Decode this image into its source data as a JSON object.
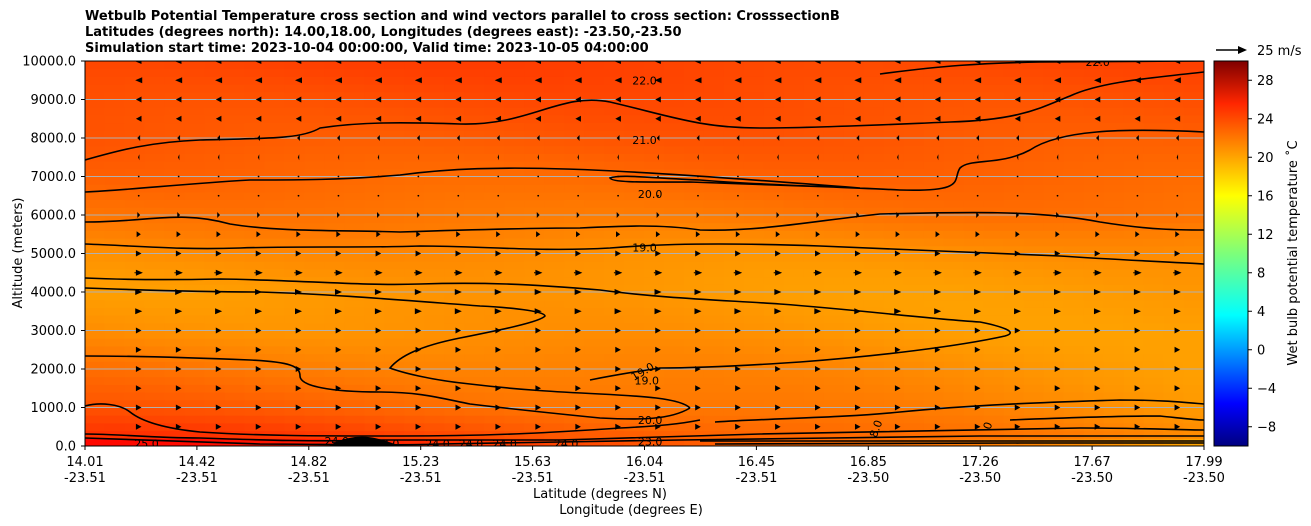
{
  "title_lines": [
    "Wetbulb Potential Temperature cross section and wind vectors parallel to cross section: CrosssectionB",
    "Latitudes (degrees north): 14.00,18.00, Longitudes (degrees east): -23.50,-23.50",
    "Simulation start time: 2023-10-04 00:00:00, Valid time: 2023-10-05 04:00:00"
  ],
  "chart_data": {
    "type": "heatmap",
    "subtype": "filled contour cross section with quiver vectors",
    "ylabel": "Altitude (meters)",
    "xlabel_primary": "Latitude (degrees N)",
    "xlabel_secondary": "Longitude (degrees E)",
    "ylim": [
      0,
      10000
    ],
    "y_ticks": [
      "0.0",
      "1000.0",
      "2000.0",
      "3000.0",
      "4000.0",
      "5000.0",
      "6000.0",
      "7000.0",
      "8000.0",
      "9000.0",
      "10000.0"
    ],
    "y_tick_values": [
      0,
      1000,
      2000,
      3000,
      4000,
      5000,
      6000,
      7000,
      8000,
      9000,
      10000
    ],
    "x_ticks_lat": [
      "14.01",
      "14.42",
      "14.82",
      "15.23",
      "15.63",
      "16.04",
      "16.45",
      "16.85",
      "17.26",
      "17.67",
      "17.99"
    ],
    "x_ticks_lon": [
      "-23.51",
      "-23.51",
      "-23.51",
      "-23.51",
      "-23.51",
      "-23.51",
      "-23.51",
      "-23.50",
      "-23.50",
      "-23.50",
      "-23.50"
    ],
    "x_tick_fractions": [
      0,
      0.1,
      0.2,
      0.3,
      0.4,
      0.5,
      0.6,
      0.7,
      0.8,
      0.9,
      1.0
    ],
    "grid": "horizontal",
    "colorbar": {
      "label": "Wet bulb potential temperature ˚C",
      "range": [
        -10,
        30
      ],
      "ticks": [
        "−8",
        "−4",
        "0",
        "4",
        "8",
        "12",
        "16",
        "20",
        "24",
        "28"
      ],
      "tick_values": [
        -8,
        -4,
        0,
        4,
        8,
        12,
        16,
        20,
        24,
        28
      ],
      "colormap": "jet"
    },
    "quiver_key": {
      "label": "25 m/s",
      "value": 25
    },
    "contour_labels": [
      {
        "text": "22.0",
        "x": 0.5,
        "alt": 9500
      },
      {
        "text": "22.0",
        "x": 0.905,
        "alt": 9970
      },
      {
        "text": "21.0",
        "x": 0.5,
        "alt": 7950
      },
      {
        "text": "20.0",
        "x": 0.505,
        "alt": 6550
      },
      {
        "text": "19.0",
        "x": 0.5,
        "alt": 5150
      },
      {
        "text": "19.0",
        "x": 0.5,
        "alt": 1950,
        "rotate": -30
      },
      {
        "text": "19.0",
        "x": 0.502,
        "alt": 1700
      },
      {
        "text": "20.0",
        "x": 0.505,
        "alt": 680
      },
      {
        "text": "23.0",
        "x": 0.505,
        "alt": 120
      },
      {
        "text": "25.0",
        "x": 0.055,
        "alt": 60
      },
      {
        "text": "24.0",
        "x": 0.225,
        "alt": 130
      },
      {
        "text": "23.0",
        "x": 0.24,
        "alt": 80
      },
      {
        "text": "22.0",
        "x": 0.27,
        "alt": 60
      },
      {
        "text": "24.0",
        "x": 0.315,
        "alt": 60
      },
      {
        "text": "24.0",
        "x": 0.345,
        "alt": 60
      },
      {
        "text": "24.0",
        "x": 0.375,
        "alt": 60
      },
      {
        "text": "24.0",
        "x": 0.43,
        "alt": 60
      },
      {
        "text": "8.0",
        "x": 0.71,
        "alt": 520,
        "rotate": -70
      },
      {
        "text": "0",
        "x": 0.81,
        "alt": 600,
        "rotate": -70
      }
    ],
    "temperature_profile": {
      "altitudes": [
        0,
        300,
        1000,
        2000,
        3000,
        4000,
        4500,
        5000,
        5500,
        6000,
        7000,
        8000,
        9000,
        10000
      ],
      "wbpt_left": [
        25.5,
        23.0,
        21.5,
        20.5,
        19.5,
        19.0,
        19.2,
        19.5,
        20.0,
        20.3,
        21.0,
        21.6,
        22.0,
        22.5
      ],
      "wbpt_right": [
        18.0,
        19.5,
        19.2,
        19.0,
        18.8,
        18.9,
        19.0,
        19.3,
        19.8,
        20.5,
        21.0,
        21.5,
        21.9,
        22.3
      ]
    },
    "wind_rows": [
      {
        "alt": 10000,
        "u": -6
      },
      {
        "alt": 9500,
        "u": -5
      },
      {
        "alt": 9000,
        "u": -4
      },
      {
        "alt": 8500,
        "u": -4
      },
      {
        "alt": 8000,
        "u": -2
      },
      {
        "alt": 7500,
        "u": -1
      },
      {
        "alt": 7000,
        "u": -0.5
      },
      {
        "alt": 6500,
        "u": 0
      },
      {
        "alt": 6000,
        "u": 2
      },
      {
        "alt": 5500,
        "u": 3
      },
      {
        "alt": 5000,
        "u": 4
      },
      {
        "alt": 4500,
        "u": 6
      },
      {
        "alt": 4000,
        "u": 5
      },
      {
        "alt": 3500,
        "u": 5
      },
      {
        "alt": 3000,
        "u": 4
      },
      {
        "alt": 2500,
        "u": 4
      },
      {
        "alt": 2000,
        "u": 4
      },
      {
        "alt": 1500,
        "u": 4
      },
      {
        "alt": 1000,
        "u": 4
      },
      {
        "alt": 500,
        "u": 4
      }
    ]
  }
}
